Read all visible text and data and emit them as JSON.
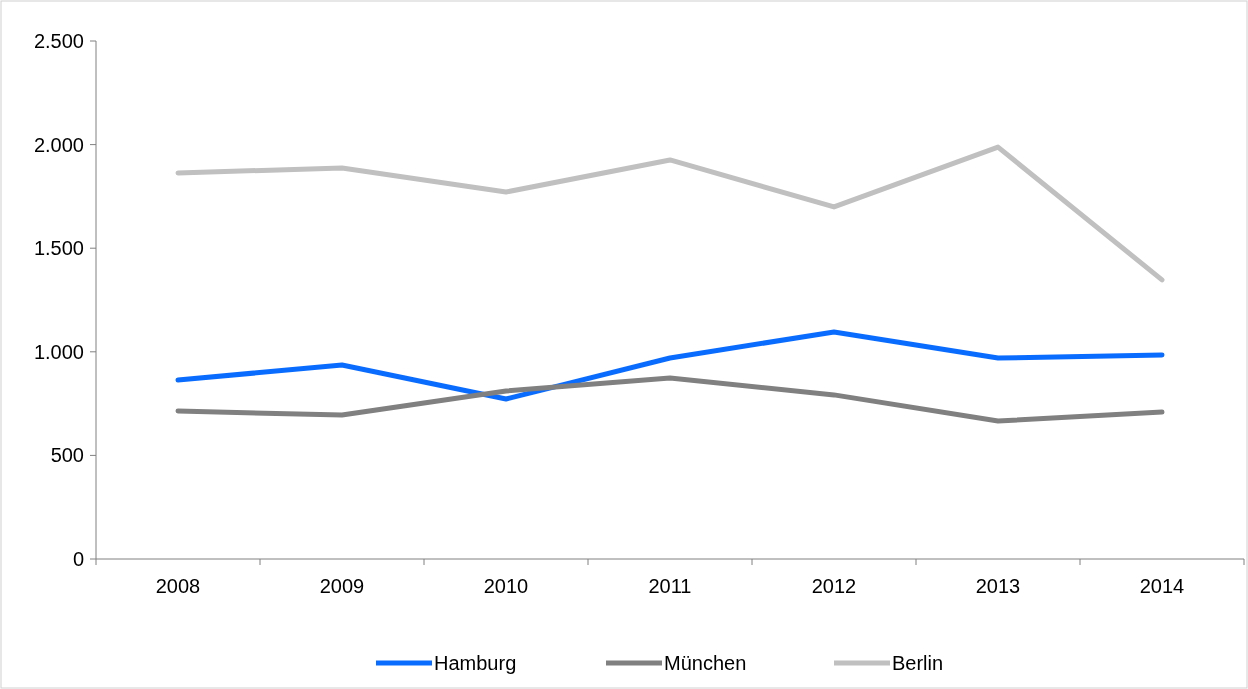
{
  "chart_data": {
    "type": "line",
    "categories": [
      "2008",
      "2009",
      "2010",
      "2011",
      "2012",
      "2013",
      "2014"
    ],
    "series": [
      {
        "name": "Hamburg",
        "color": "#0a6cff",
        "values": [
          864,
          936,
          772,
          970,
          1096,
          970,
          985
        ]
      },
      {
        "name": "München",
        "color": "#808080",
        "values": [
          714,
          695,
          811,
          874,
          792,
          666,
          709
        ]
      },
      {
        "name": "Berlin",
        "color": "#c0c0c0",
        "values": [
          1863,
          1887,
          1771,
          1926,
          1699,
          1988,
          1347
        ]
      }
    ],
    "ylim": [
      0,
      2500
    ],
    "yticks": [
      0,
      500,
      {
        "value": 1000,
        "label": "1.000"
      },
      {
        "value": 1500,
        "label": "1.500"
      },
      {
        "value": 2000,
        "label": "2.000"
      },
      {
        "value": 2500,
        "label": "2.500"
      }
    ],
    "grid": false,
    "legend": "bottom",
    "marker": "none",
    "line_style": "solid"
  }
}
